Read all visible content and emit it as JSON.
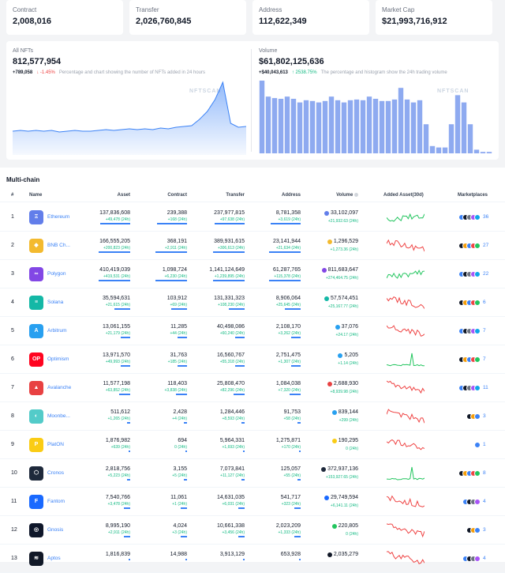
{
  "stats": [
    {
      "label": "Contract",
      "value": "2,008,016"
    },
    {
      "label": "Transfer",
      "value": "2,026,760,845"
    },
    {
      "label": "Address",
      "value": "112,622,349"
    },
    {
      "label": "Market Cap",
      "value": "$21,993,716,912"
    }
  ],
  "nft_chart": {
    "label": "All NFTs",
    "value": "812,577,954",
    "delta": "+789,058",
    "change": "↓ -1.45%",
    "description": "Percentage and chart showing the number of NFTs added in 24 hours",
    "watermark": "NFTSCAN"
  },
  "volume_chart": {
    "label": "Volume",
    "value": "$61,802,125,636",
    "delta": "+$40,043,613",
    "change": "↑ 2538.75%",
    "description": "The percentage and histogram show the 24h trading volume",
    "watermark": "NFTSCAN"
  },
  "chart_data": [
    {
      "type": "area",
      "title": "",
      "series": [
        {
          "values": [
            30,
            31,
            30,
            31,
            30,
            31,
            29,
            30,
            31,
            30,
            30,
            31,
            32,
            31,
            32,
            33,
            32,
            33,
            32,
            34,
            33,
            35,
            36,
            37,
            45,
            55,
            70,
            92,
            40,
            35,
            36
          ]
        }
      ]
    },
    {
      "type": "bar",
      "title": "",
      "series": [
        {
          "values": [
            100,
            78,
            76,
            75,
            78,
            75,
            70,
            73,
            72,
            70,
            72,
            78,
            73,
            70,
            73,
            74,
            73,
            78,
            75,
            72,
            72,
            74,
            90,
            74,
            70,
            73,
            40,
            10,
            8,
            8,
            40,
            80,
            70,
            40,
            5,
            2,
            2
          ]
        }
      ]
    }
  ],
  "table": {
    "title": "Multi-chain",
    "headers": {
      "rank": "#",
      "name": "Name",
      "asset": "Asset",
      "contract": "Contract",
      "transfer": "Transfer",
      "address": "Address",
      "volume": "Volume",
      "added": "Added Asset(30d)",
      "markets": "Marketplaces"
    },
    "rows": [
      {
        "rank": "1",
        "name": "Ethereum",
        "color": "#627eea",
        "glyph": "Ξ",
        "asset": "137,836,608",
        "asset_d": "+49,478 (24h)",
        "contract": "239,388",
        "contract_d": "+168 (24h)",
        "transfer": "237,977,815",
        "transfer_d": "+97,638 (24h)",
        "address": "8,781,358",
        "address_d": "+3,619 (24h)",
        "volume": "33,102,097",
        "volume_d": "+21,932.63 (24h)",
        "vcolor": "#627eea",
        "spark": "#22c55e",
        "markets": "36",
        "bar": 0.95
      },
      {
        "rank": "2",
        "name": "BNB Ch...",
        "color": "#f3ba2f",
        "glyph": "◆",
        "asset": "166,555,205",
        "asset_d": "+200,823 (24h)",
        "contract": "368,191",
        "contract_d": "+2,911 (24h)",
        "transfer": "389,931,615",
        "transfer_d": "+306,613 (24h)",
        "address": "23,141,944",
        "address_d": "+21,634 (24h)",
        "volume": "1,296,529",
        "volume_d": "+1,273.36 (24h)",
        "vcolor": "#f3ba2f",
        "spark": "#ef4444",
        "markets": "27",
        "bar": 1.0
      },
      {
        "rank": "3",
        "name": "Polygon",
        "color": "#8247e5",
        "glyph": "∞",
        "asset": "410,419,039",
        "asset_d": "+419,531 (24h)",
        "contract": "1,098,724",
        "contract_d": "+6,230 (24h)",
        "transfer": "1,141,124,649",
        "transfer_d": "+1,239,895 (24h)",
        "address": "61,287,765",
        "address_d": "+115,378 (24h)",
        "volume": "811,683,647",
        "volume_d": "+274,464.75 (24h)",
        "vcolor": "#8247e5",
        "spark": "#22c55e",
        "markets": "22",
        "bar": 1.0
      },
      {
        "rank": "4",
        "name": "Solana",
        "color": "#14b8a6",
        "glyph": "≡",
        "asset": "35,594,631",
        "asset_d": "+21,615 (24h)",
        "contract": "103,912",
        "contract_d": "+69 (24h)",
        "transfer": "131,331,323",
        "transfer_d": "+108,230 (24h)",
        "address": "8,906,064",
        "address_d": "+25,645 (24h)",
        "volume": "57,574,451",
        "volume_d": "+25,167.77 (24h)",
        "vcolor": "#14b8a6",
        "spark": "#ef4444",
        "markets": "6",
        "bar": 0.5
      },
      {
        "rank": "5",
        "name": "Arbitrum",
        "color": "#28a0f0",
        "glyph": "A",
        "asset": "13,061,155",
        "asset_d": "+21,179 (24h)",
        "contract": "11,285",
        "contract_d": "+44 (24h)",
        "transfer": "40,498,086",
        "transfer_d": "+60,240 (24h)",
        "address": "2,108,170",
        "address_d": "+3,262 (24h)",
        "volume": "37,076",
        "volume_d": "+24.17 (24h)",
        "vcolor": "#28a0f0",
        "spark": "#ef4444",
        "markets": "7",
        "bar": 0.3
      },
      {
        "rank": "6",
        "name": "Optimism",
        "color": "#ff0420",
        "glyph": "OP",
        "asset": "13,971,570",
        "asset_d": "+49,993 (24h)",
        "contract": "31,763",
        "contract_d": "+185 (24h)",
        "transfer": "16,560,767",
        "transfer_d": "+55,318 (24h)",
        "address": "2,751,475",
        "address_d": "+1,307 (24h)",
        "volume": "5,205",
        "volume_d": "+1.14 (24h)",
        "vcolor": "#28a0f0",
        "spark": "#22c55e",
        "markets": "7",
        "bar": 0.3
      },
      {
        "rank": "7",
        "name": "Avalanche",
        "color": "#e84142",
        "glyph": "▲",
        "asset": "11,577,198",
        "asset_d": "+63,852 (24h)",
        "contract": "118,403",
        "contract_d": "+3,838 (24h)",
        "transfer": "25,808,470",
        "transfer_d": "+82,296 (24h)",
        "address": "1,084,038",
        "address_d": "+7,320 (24h)",
        "volume": "2,688,930",
        "volume_d": "+8,939.98 (24h)",
        "vcolor": "#e84142",
        "spark": "#ef4444",
        "markets": "11",
        "bar": 0.35
      },
      {
        "rank": "8",
        "name": "Moonbe...",
        "color": "#53cbc9",
        "glyph": "◐",
        "asset": "511,612",
        "asset_d": "+1,265 (24h)",
        "contract": "2,428",
        "contract_d": "+4 (24h)",
        "transfer": "1,284,446",
        "transfer_d": "+8,593 (24h)",
        "address": "91,753",
        "address_d": "+58 (24h)",
        "volume": "839,144",
        "volume_d": "+299 (24h)",
        "vcolor": "#28a0f0",
        "spark": "#ef4444",
        "markets": "3",
        "bar": 0.1
      },
      {
        "rank": "9",
        "name": "PlatON",
        "color": "#facc15",
        "glyph": "P",
        "asset": "1,876,982",
        "asset_d": "+639 (24h)",
        "contract": "694",
        "contract_d": "0 (24h)",
        "transfer": "5,964,331",
        "transfer_d": "+1,693 (24h)",
        "address": "1,275,871",
        "address_d": "+170 (24h)",
        "volume": "190,295",
        "volume_d": "0 (24h)",
        "vcolor": "#facc15",
        "spark": "#ef4444",
        "markets": "1",
        "bar": 0.05
      },
      {
        "rank": "10",
        "name": "Cronos",
        "color": "#1e293b",
        "glyph": "⬡",
        "asset": "2,818,756",
        "asset_d": "+5,223 (24h)",
        "contract": "3,155",
        "contract_d": "+5 (24h)",
        "transfer": "7,073,841",
        "transfer_d": "+11,127 (24h)",
        "address": "125,057",
        "address_d": "+55 (24h)",
        "volume": "372,937,136",
        "volume_d": "+153,927.65 (24h)",
        "vcolor": "#1e293b",
        "spark": "#22c55e",
        "markets": "8",
        "bar": 0.1
      },
      {
        "rank": "11",
        "name": "Fantom",
        "color": "#1969ff",
        "glyph": "F",
        "asset": "7,540,766",
        "asset_d": "+3,478 (24h)",
        "contract": "11,061",
        "contract_d": "+1 (24h)",
        "transfer": "14,631,035",
        "transfer_d": "+6,031 (24h)",
        "address": "541,717",
        "address_d": "+323 (24h)",
        "volume": "29,749,594",
        "volume_d": "+6,141.11 (24h)",
        "vcolor": "#1969ff",
        "spark": "#ef4444",
        "markets": "4",
        "bar": 0.2
      },
      {
        "rank": "12",
        "name": "Gnosis",
        "color": "#0f172a",
        "glyph": "◎",
        "asset": "8,995,190",
        "asset_d": "+2,911 (24h)",
        "contract": "4,024",
        "contract_d": "+3 (24h)",
        "transfer": "10,661,338",
        "transfer_d": "+3,456 (24h)",
        "address": "2,023,209",
        "address_d": "+1,333 (24h)",
        "volume": "220,805",
        "volume_d": "0 (24h)",
        "vcolor": "#22c55e",
        "spark": "#ef4444",
        "markets": "3",
        "bar": 0.2
      },
      {
        "rank": "13",
        "name": "Aptos",
        "color": "#111827",
        "glyph": "≋",
        "asset": "1,816,839",
        "asset_d": "",
        "contract": "14,988",
        "contract_d": "",
        "transfer": "3,913,129",
        "transfer_d": "",
        "address": "653,928",
        "address_d": "",
        "volume": "2,035,279",
        "volume_d": "",
        "vcolor": "#111827",
        "spark": "#ef4444",
        "markets": "4",
        "bar": 0.05
      }
    ]
  }
}
